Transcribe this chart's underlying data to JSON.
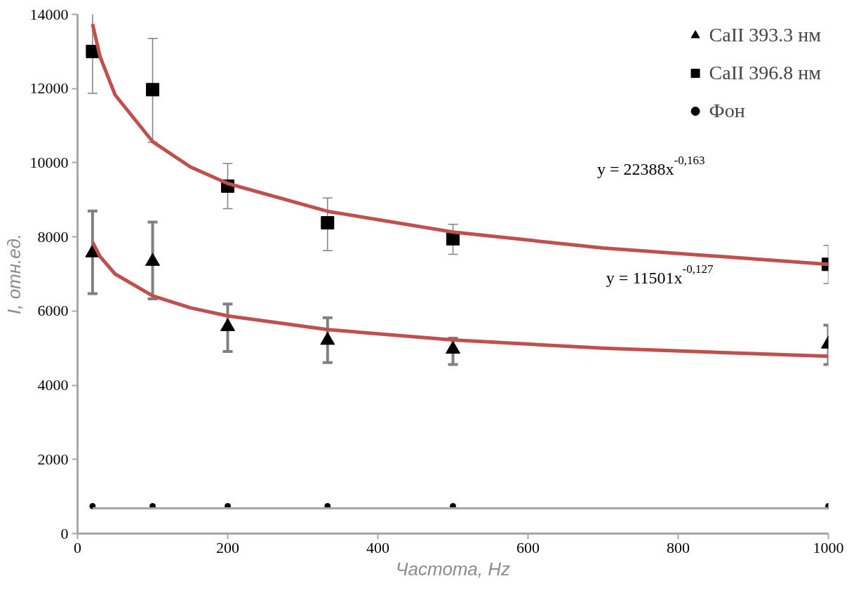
{
  "chart_data": {
    "type": "scatter",
    "xlabel": "Частота, Hz",
    "ylabel": "I, отн.ед.",
    "xlim": [
      0,
      1000
    ],
    "ylim": [
      0,
      14000
    ],
    "xticks": [
      0,
      200,
      400,
      600,
      800,
      1000
    ],
    "yticks": [
      0,
      2000,
      4000,
      6000,
      8000,
      10000,
      12000,
      14000
    ],
    "grid": false,
    "legend": "top right",
    "series": [
      {
        "name": "CaII 393.3 нм",
        "marker": "triangle",
        "color": "#000000",
        "x": [
          20,
          100,
          200,
          333,
          500,
          1000
        ],
        "values": [
          7570,
          7340,
          5580,
          5210,
          4970,
          5110
        ],
        "errors": [
          [
            6470,
            8700
          ],
          [
            6330,
            8400
          ],
          [
            4910,
            6190
          ],
          [
            4610,
            5820
          ],
          [
            4560,
            5270
          ],
          [
            4560,
            5620
          ]
        ]
      },
      {
        "name": "CaII 396.8 нм",
        "marker": "square",
        "color": "#000000",
        "x": [
          20,
          100,
          200,
          333,
          500,
          1000
        ],
        "values": [
          13000,
          11970,
          9370,
          8380,
          7950,
          7260
        ],
        "errors": [
          [
            11870,
            14050
          ],
          [
            10550,
            13350
          ],
          [
            8760,
            9980
          ],
          [
            7630,
            9050
          ],
          [
            7530,
            8340
          ],
          [
            6740,
            7770
          ]
        ]
      },
      {
        "name": "Фон",
        "marker": "circle",
        "color": "#000000",
        "x": [
          20,
          100,
          200,
          333,
          500,
          1000
        ],
        "values": [
          740,
          740,
          740,
          740,
          740,
          740
        ]
      },
      {
        "type": "line",
        "color": "#c0504d",
        "x": [
          20,
          30,
          50,
          100,
          150,
          200,
          333,
          500,
          700,
          1000
        ],
        "values": [
          13740,
          12860,
          11830,
          10570,
          9890,
          9440,
          8690,
          8130,
          7700,
          7260
        ]
      },
      {
        "type": "line",
        "color": "#c0504d",
        "x": [
          20,
          30,
          50,
          100,
          150,
          200,
          333,
          500,
          700,
          1000
        ],
        "values": [
          7860,
          7470,
          7000,
          6410,
          6090,
          5870,
          5500,
          5220,
          5000,
          4780
        ]
      },
      {
        "type": "line",
        "color": "#a6a6a6",
        "x": [
          20,
          1000
        ],
        "values": [
          680,
          680
        ]
      }
    ],
    "annotations": [
      "y = 22388x$^{-0,163}$",
      "y = 11501x$^{-0,127}$"
    ]
  }
}
